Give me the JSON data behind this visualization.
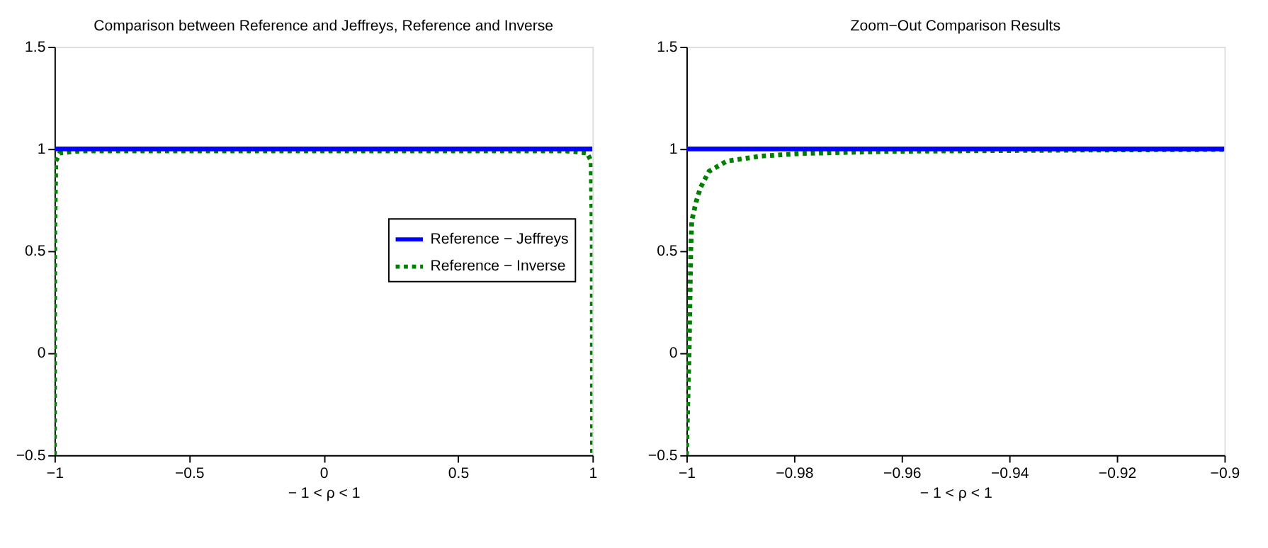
{
  "chart_data": [
    {
      "type": "line",
      "title": "Comparison between Reference and Jeffreys, Reference and Inverse",
      "xlabel": "− 1 < ρ < 1",
      "xlim": [
        -1,
        1
      ],
      "xticks": [
        -1,
        -0.5,
        0,
        0.5,
        1
      ],
      "ylim": [
        -0.5,
        1.5
      ],
      "yticks": [
        -0.5,
        0,
        0.5,
        1,
        1.5
      ],
      "grid": false,
      "legend": "right",
      "series": [
        {
          "name": "Reference − Jeffreys",
          "color": "#0000ff",
          "line_style": "solid",
          "x": [
            -1,
            1
          ],
          "values": [
            1,
            1
          ]
        },
        {
          "name": "Reference − Inverse",
          "color": "#008000",
          "line_style": "dotted",
          "x": [
            -1,
            -0.999,
            -0.995,
            -0.98,
            -0.9,
            0,
            0.9,
            0.98,
            0.995,
            0.999,
            1
          ],
          "values": [
            -0.5,
            0.6,
            0.94,
            0.98,
            0.99,
            0.99,
            0.99,
            0.98,
            0.94,
            0.6,
            -0.5
          ]
        }
      ]
    },
    {
      "type": "line",
      "title": "Zoom−Out Comparison Results",
      "xlabel": "− 1 < ρ < 1",
      "xlim": [
        -1,
        -0.9
      ],
      "xticks": [
        -1,
        -0.98,
        -0.96,
        -0.94,
        -0.92,
        -0.9
      ],
      "ylim": [
        -0.5,
        1.5
      ],
      "yticks": [
        -0.5,
        0,
        0.5,
        1,
        1.5
      ],
      "grid": false,
      "legend": "right",
      "series": [
        {
          "name": "Reference − Jeffreys",
          "color": "#0000ff",
          "line_style": "solid",
          "x": [
            -1,
            -0.9
          ],
          "values": [
            1,
            1
          ]
        },
        {
          "name": "Reference − Inverse",
          "color": "#008000",
          "line_style": "dotted",
          "x": [
            -1,
            -0.9995,
            -0.9992,
            -0.999,
            -0.9982,
            -0.9974,
            -0.9958,
            -0.9925,
            -0.986,
            -0.978,
            -0.9616,
            -0.94,
            -0.92,
            -0.9
          ],
          "values": [
            -0.5,
            0.0,
            0.5,
            0.65,
            0.74,
            0.81,
            0.89,
            0.94,
            0.965,
            0.978,
            0.988,
            0.992,
            0.995,
            0.997
          ]
        }
      ]
    }
  ]
}
